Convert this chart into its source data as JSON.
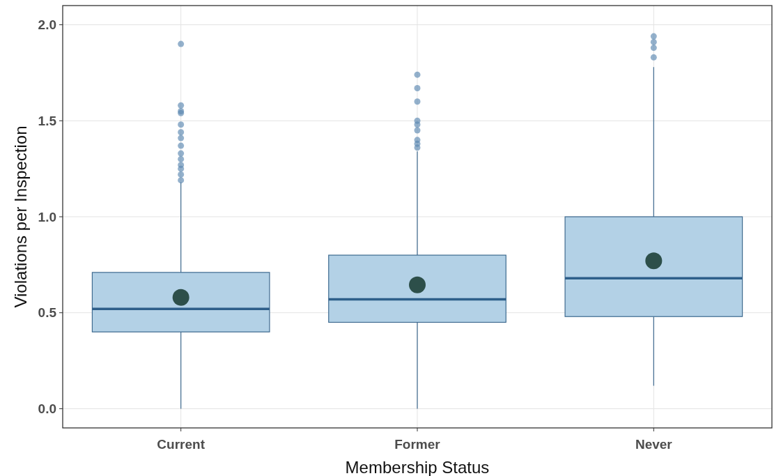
{
  "chart_data": {
    "type": "box",
    "xlabel": "Membership Status",
    "ylabel": "Violations per Inspection",
    "categories": [
      "Current",
      "Former",
      "Never"
    ],
    "boxes": [
      {
        "low": 0,
        "q1": 0.4,
        "median": 0.52,
        "q3": 0.71,
        "high": 1.18,
        "mean": 0.58,
        "outliers": [
          1.9,
          1.58,
          1.55,
          1.54,
          1.48,
          1.44,
          1.41,
          1.37,
          1.33,
          1.3,
          1.27,
          1.25,
          1.22,
          1.19
        ]
      },
      {
        "low": 0,
        "q1": 0.45,
        "median": 0.57,
        "q3": 0.8,
        "high": 1.34,
        "mean": 0.645,
        "outliers": [
          1.74,
          1.67,
          1.6,
          1.5,
          1.48,
          1.45,
          1.4,
          1.38,
          1.36
        ]
      },
      {
        "low": 0.12,
        "q1": 0.48,
        "median": 0.68,
        "q3": 1.0,
        "high": 1.78,
        "mean": 0.77,
        "outliers": [
          1.94,
          1.91,
          1.88,
          1.83
        ]
      }
    ],
    "color": "#b3d1e6",
    "ylim": [
      -0.1,
      2.1
    ],
    "yticks": [
      {
        "value": 0,
        "label": "0.0"
      },
      {
        "value": 0.5,
        "label": "0.5"
      },
      {
        "value": 1,
        "label": "1.0"
      },
      {
        "value": 1.5,
        "label": "1.5"
      },
      {
        "value": 2,
        "label": "2.0"
      }
    ],
    "grid": true
  }
}
